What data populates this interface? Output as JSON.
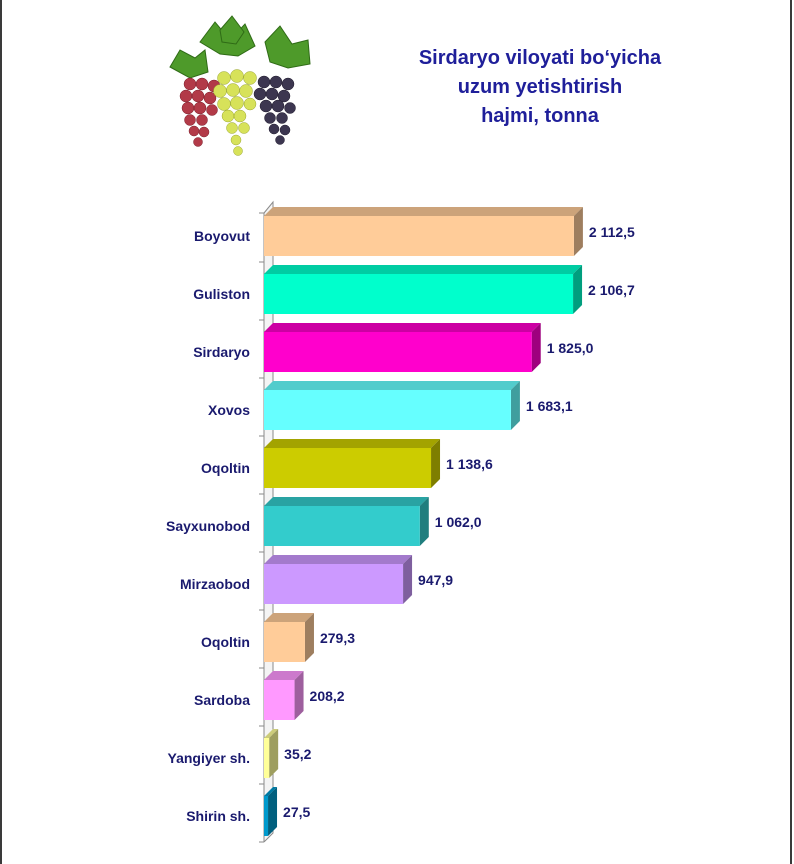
{
  "title_lines": [
    "Sirdaryo viloyati bo‘yicha",
    "uzum yetishtirish",
    "hajmi, tonna"
  ],
  "chart_data": {
    "type": "bar",
    "orientation": "horizontal",
    "title": "Sirdaryo viloyati bo‘yicha uzum yetishtirish hajmi, tonna",
    "categories": [
      "Boyovut",
      "Guliston",
      "Sirdaryo",
      "Xovos",
      "Oqoltin",
      "Sayxunobod",
      "Mirzaobod",
      "Oqoltin",
      "Sardoba",
      "Yangiyer sh.",
      "Shirin sh."
    ],
    "values": [
      2112.5,
      2106.7,
      1825.0,
      1683.1,
      1138.6,
      1062.0,
      947.9,
      279.3,
      208.2,
      35.2,
      27.5
    ],
    "value_labels": [
      "2 112,5",
      "2 106,7",
      "1 825,0",
      "1 683,1",
      "1 138,6",
      "1 062,0",
      "947,9",
      "279,3",
      "208,2",
      "35,2",
      "27,5"
    ],
    "colors": [
      "#ffcc99",
      "#00ffcc",
      "#ff00cc",
      "#66ffff",
      "#cccc00",
      "#33cccc",
      "#cc99ff",
      "#ffcc99",
      "#ff99ff",
      "#ffff99",
      "#0099cc"
    ],
    "xlim": [
      0,
      2200
    ],
    "grid": false,
    "legend": "none"
  }
}
